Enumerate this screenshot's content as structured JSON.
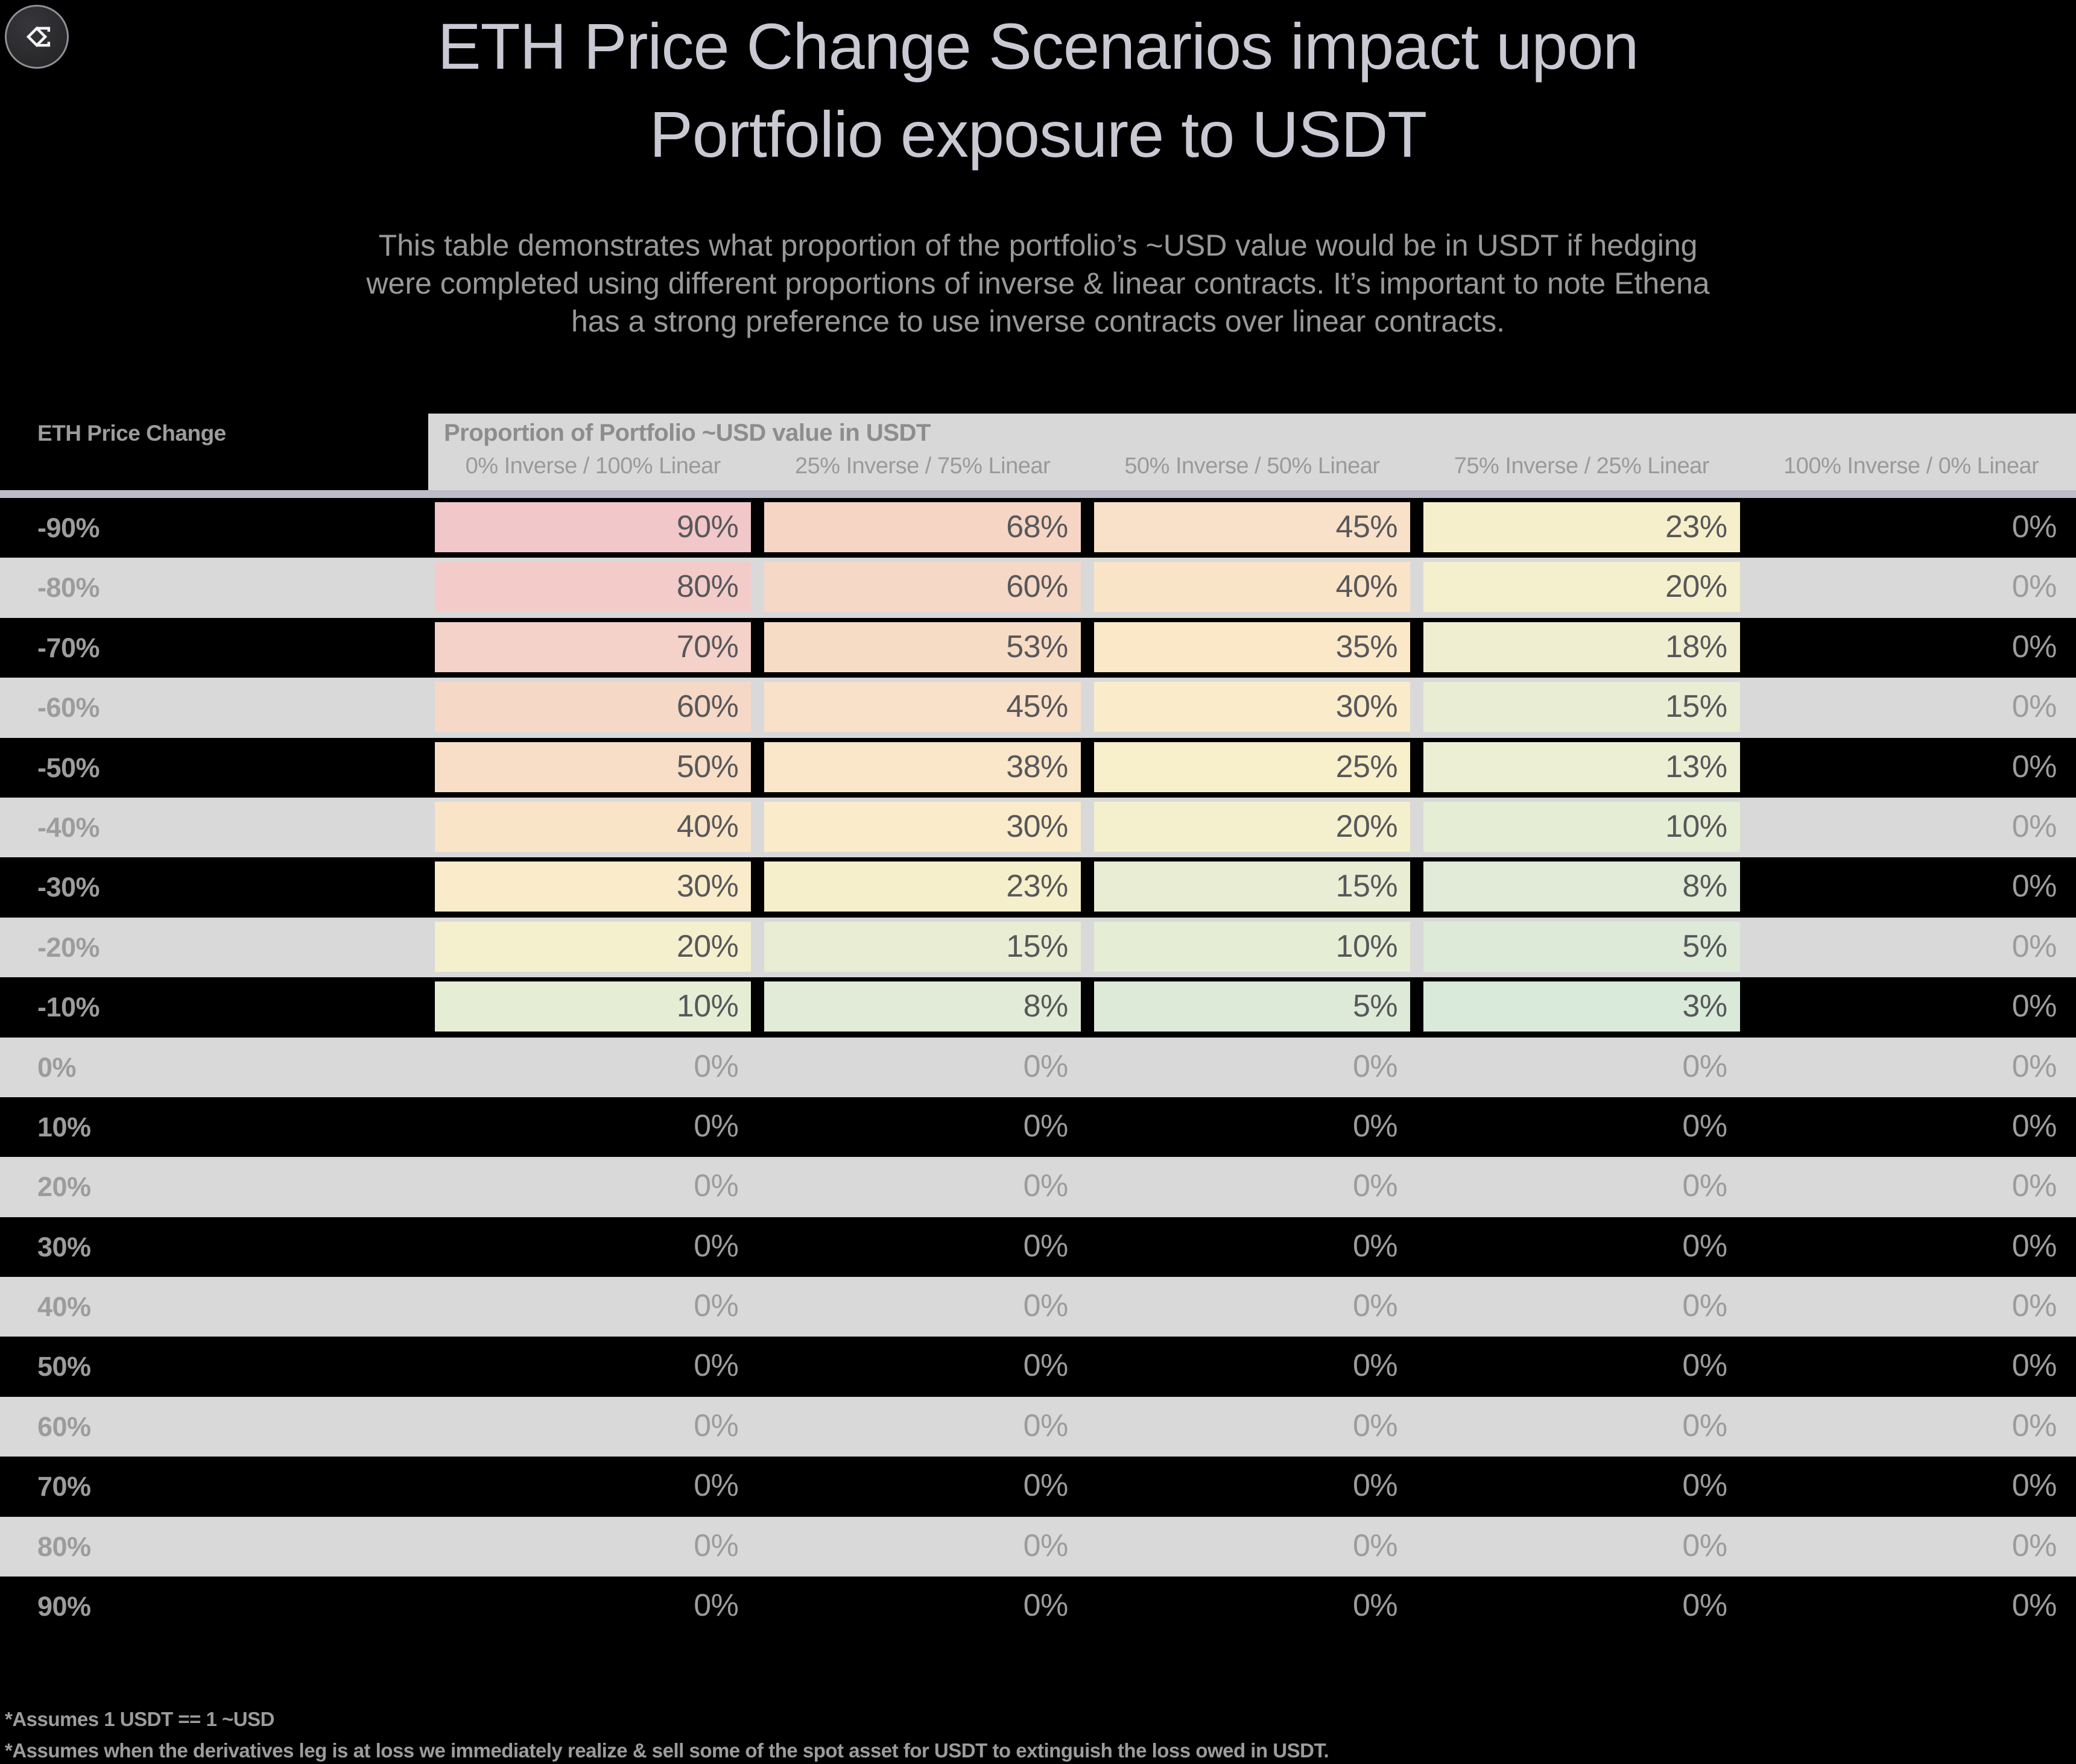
{
  "logo": {
    "icon": "ethena-sigma-diamond-logo"
  },
  "title": {
    "line1": "ETH Price Change Scenarios impact upon",
    "line2": "Portfolio exposure to USDT"
  },
  "subtitle": {
    "lines": [
      "This table demonstrates what proportion of the portfolio’s ~USD value would be in USDT if hedging",
      "were completed using different proportions of inverse & linear contracts. It’s important to note Ethena",
      "has a strong preference to use inverse contracts over linear contracts."
    ]
  },
  "table": {
    "row_header": "ETH Price Change",
    "group_header": "Proportion of Portfolio ~USD value in USDT",
    "columns": [
      "0% Inverse / 100% Linear",
      "25% Inverse / 75% Linear",
      "50% Inverse / 50% Linear",
      "75% Inverse / 25% Linear",
      "100% Inverse / 0% Linear"
    ],
    "rows": [
      {
        "label": "-90%",
        "values": [
          "90%",
          "68%",
          "45%",
          "23%",
          "0%"
        ],
        "colors": [
          "#f2c7ca",
          "#f6d5c5",
          "#f9e0c8",
          "#f6efcb",
          null
        ]
      },
      {
        "label": "-80%",
        "values": [
          "80%",
          "60%",
          "40%",
          "20%",
          "0%"
        ],
        "colors": [
          "#f3ccca",
          "#f6d8c6",
          "#fae4c8",
          "#f4f0ce",
          null
        ]
      },
      {
        "label": "-70%",
        "values": [
          "70%",
          "53%",
          "35%",
          "18%",
          "0%"
        ],
        "colors": [
          "#f4d1c9",
          "#f7dcc5",
          "#fae8c9",
          "#efeed1",
          null
        ]
      },
      {
        "label": "-60%",
        "values": [
          "60%",
          "45%",
          "30%",
          "15%",
          "0%"
        ],
        "colors": [
          "#f6d8c6",
          "#f9e0c8",
          "#faecca",
          "#e9edd3",
          null
        ]
      },
      {
        "label": "-50%",
        "values": [
          "50%",
          "38%",
          "25%",
          "13%",
          "0%"
        ],
        "colors": [
          "#f8dec6",
          "#fae6c8",
          "#f8efcb",
          "#ecefd4",
          null
        ]
      },
      {
        "label": "-40%",
        "values": [
          "40%",
          "30%",
          "20%",
          "10%",
          "0%"
        ],
        "colors": [
          "#fae4c8",
          "#faecca",
          "#f4f0ce",
          "#e6edd5",
          null
        ]
      },
      {
        "label": "-30%",
        "values": [
          "30%",
          "23%",
          "15%",
          "8%",
          "0%"
        ],
        "colors": [
          "#faecca",
          "#f6efcb",
          "#e9edd3",
          "#e1ebd7",
          null
        ]
      },
      {
        "label": "-20%",
        "values": [
          "20%",
          "15%",
          "10%",
          "5%",
          "0%"
        ],
        "colors": [
          "#f4f0ce",
          "#e9edd3",
          "#e6edd5",
          "#ddead8",
          null
        ]
      },
      {
        "label": "-10%",
        "values": [
          "10%",
          "8%",
          "5%",
          "3%",
          "0%"
        ],
        "colors": [
          "#e6edd5",
          "#e1ebd7",
          "#ddead8",
          "#d9e9da",
          null
        ]
      },
      {
        "label": "0%",
        "values": [
          "0%",
          "0%",
          "0%",
          "0%",
          "0%"
        ],
        "colors": [
          null,
          null,
          null,
          null,
          null
        ]
      },
      {
        "label": "10%",
        "values": [
          "0%",
          "0%",
          "0%",
          "0%",
          "0%"
        ],
        "colors": [
          null,
          null,
          null,
          null,
          null
        ]
      },
      {
        "label": "20%",
        "values": [
          "0%",
          "0%",
          "0%",
          "0%",
          "0%"
        ],
        "colors": [
          null,
          null,
          null,
          null,
          null
        ]
      },
      {
        "label": "30%",
        "values": [
          "0%",
          "0%",
          "0%",
          "0%",
          "0%"
        ],
        "colors": [
          null,
          null,
          null,
          null,
          null
        ]
      },
      {
        "label": "40%",
        "values": [
          "0%",
          "0%",
          "0%",
          "0%",
          "0%"
        ],
        "colors": [
          null,
          null,
          null,
          null,
          null
        ]
      },
      {
        "label": "50%",
        "values": [
          "0%",
          "0%",
          "0%",
          "0%",
          "0%"
        ],
        "colors": [
          null,
          null,
          null,
          null,
          null
        ]
      },
      {
        "label": "60%",
        "values": [
          "0%",
          "0%",
          "0%",
          "0%",
          "0%"
        ],
        "colors": [
          null,
          null,
          null,
          null,
          null
        ]
      },
      {
        "label": "70%",
        "values": [
          "0%",
          "0%",
          "0%",
          "0%",
          "0%"
        ],
        "colors": [
          null,
          null,
          null,
          null,
          null
        ]
      },
      {
        "label": "80%",
        "values": [
          "0%",
          "0%",
          "0%",
          "0%",
          "0%"
        ],
        "colors": [
          null,
          null,
          null,
          null,
          null
        ]
      },
      {
        "label": "90%",
        "values": [
          "0%",
          "0%",
          "0%",
          "0%",
          "0%"
        ],
        "colors": [
          null,
          null,
          null,
          null,
          null
        ]
      }
    ]
  },
  "footnotes": [
    "*Assumes 1 USDT == 1 ~USD",
    "*Assumes when the derivatives leg is at loss we immediately realize & sell some of the spot asset for USDT to extinguish the loss owed in USDT."
  ],
  "colors": {
    "page_bg": "#000000",
    "row_alt_bg": "#d9d9d9",
    "band_bg": "#d8d8d8",
    "underline": "#bdbdc9",
    "title_text": "#c9c9d3",
    "subtitle_text": "#999999",
    "header_text": "#9c9c9c",
    "band_title_text": "#8d8d8d",
    "cell_text": "#58585a",
    "muted_value_text": "#9c9c9c",
    "scale_max_red": "#f2c7ca",
    "scale_mid_yellow": "#f8efcb",
    "scale_min_green": "#d9e9da"
  },
  "chart_data": {
    "type": "table",
    "title": "ETH Price Change Scenarios impact upon Portfolio exposure to USDT",
    "xlabel": "ETH Price Change",
    "ylabel": "Proportion of Portfolio ~USD value in USDT (%)",
    "categories": [
      "-90%",
      "-80%",
      "-70%",
      "-60%",
      "-50%",
      "-40%",
      "-30%",
      "-20%",
      "-10%",
      "0%",
      "10%",
      "20%",
      "30%",
      "40%",
      "50%",
      "60%",
      "70%",
      "80%",
      "90%"
    ],
    "series": [
      {
        "name": "0% Inverse / 100% Linear",
        "values": [
          90,
          80,
          70,
          60,
          50,
          40,
          30,
          20,
          10,
          0,
          0,
          0,
          0,
          0,
          0,
          0,
          0,
          0,
          0
        ]
      },
      {
        "name": "25% Inverse / 75% Linear",
        "values": [
          68,
          60,
          53,
          45,
          38,
          30,
          23,
          15,
          8,
          0,
          0,
          0,
          0,
          0,
          0,
          0,
          0,
          0,
          0
        ]
      },
      {
        "name": "50% Inverse / 50% Linear",
        "values": [
          45,
          40,
          35,
          30,
          25,
          20,
          15,
          10,
          5,
          0,
          0,
          0,
          0,
          0,
          0,
          0,
          0,
          0,
          0
        ]
      },
      {
        "name": "75% Inverse / 25% Linear",
        "values": [
          23,
          20,
          18,
          15,
          13,
          10,
          8,
          5,
          3,
          0,
          0,
          0,
          0,
          0,
          0,
          0,
          0,
          0,
          0
        ]
      },
      {
        "name": "100% Inverse / 0% Linear",
        "values": [
          0,
          0,
          0,
          0,
          0,
          0,
          0,
          0,
          0,
          0,
          0,
          0,
          0,
          0,
          0,
          0,
          0,
          0,
          0
        ]
      }
    ],
    "legend_position": "top",
    "grid": false,
    "conditional_formatting": "red-yellow-green 3-color scale applied to non-zero cells, red=90, green=3"
  }
}
